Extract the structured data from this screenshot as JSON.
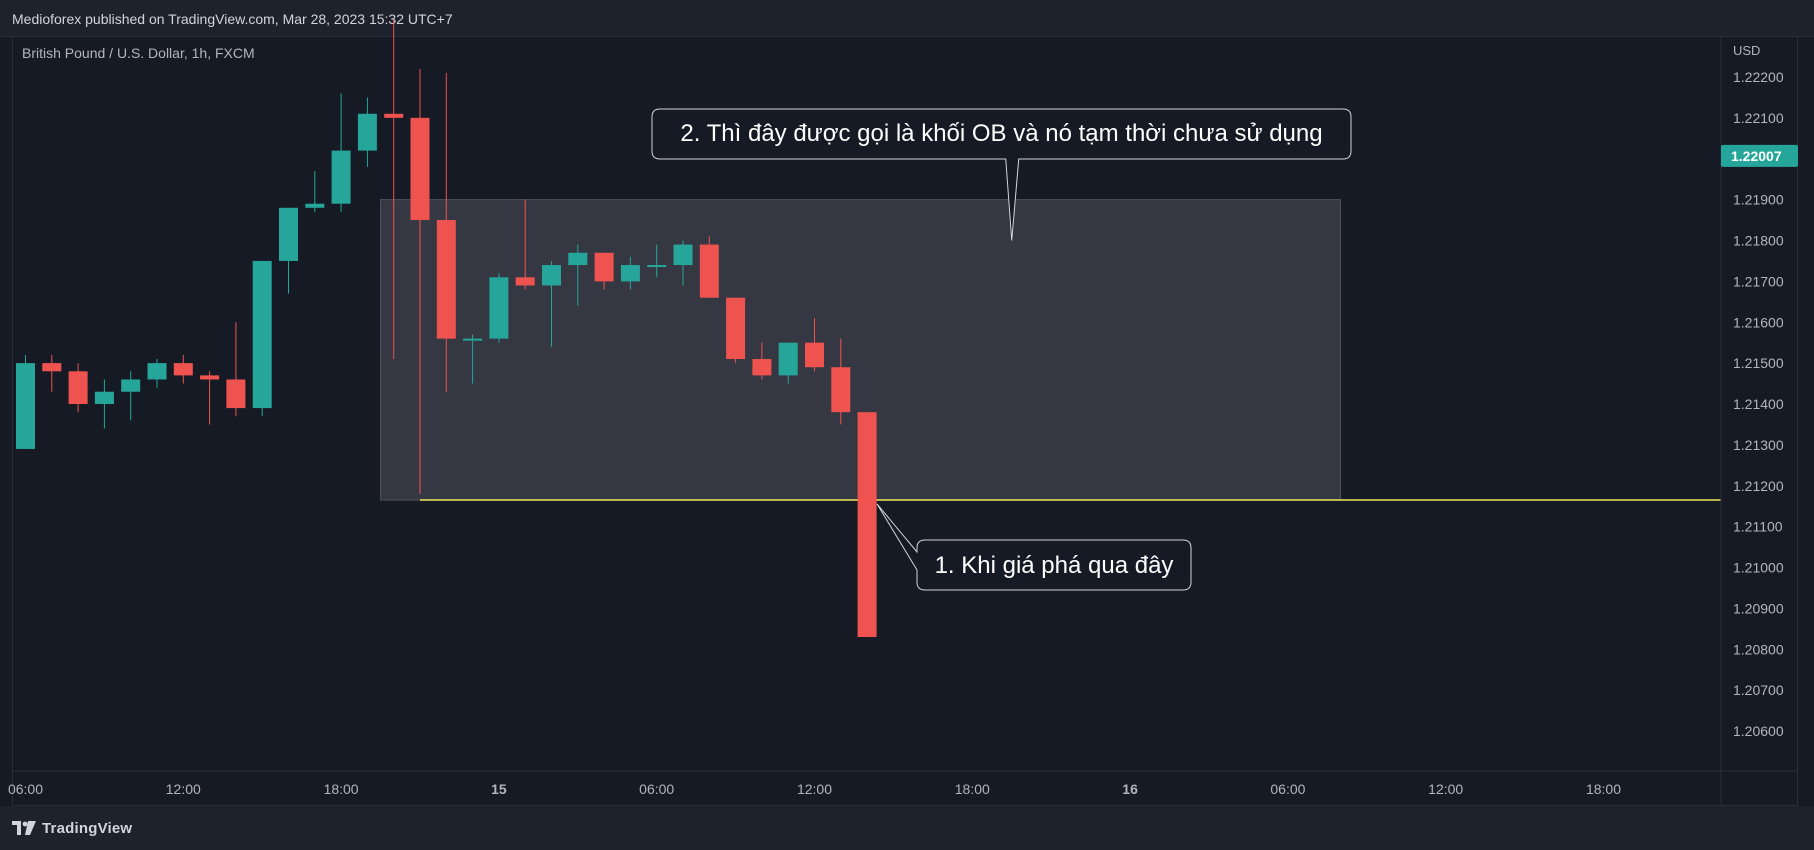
{
  "header": {
    "text": "Medioforex published on TradingView.com, Mar 28, 2023 15:32 UTC+7"
  },
  "footer": {
    "logo_text": "TradingView"
  },
  "colors": {
    "bull": "#26a69a",
    "bear": "#ef5350",
    "background": "#161a25",
    "ob_box": "#3b3e48",
    "hline": "#f2e85c",
    "price_tag": "#26a69a"
  },
  "chart_data": {
    "type": "candlestick",
    "symbol_label": "British Pound / U.S. Dollar, 1h, FXCM",
    "currency": "USD",
    "ylim": [
      1.2055,
      1.2233
    ],
    "y_ticks": [
      "1.22200",
      "1.22100",
      "1.21900",
      "1.21800",
      "1.21700",
      "1.21600",
      "1.21500",
      "1.21400",
      "1.21300",
      "1.21200",
      "1.21100",
      "1.21000",
      "1.20900",
      "1.20800",
      "1.20700",
      "1.20600"
    ],
    "y_tick_values": [
      1.222,
      1.221,
      1.219,
      1.218,
      1.217,
      1.216,
      1.215,
      1.214,
      1.213,
      1.212,
      1.211,
      1.21,
      1.209,
      1.208,
      1.207,
      1.206
    ],
    "last_price": "1.22007",
    "last_price_value": 1.22007,
    "x_ticks": [
      {
        "label": "06:00",
        "bar": 0,
        "bold": false
      },
      {
        "label": "12:00",
        "bar": 6,
        "bold": false
      },
      {
        "label": "18:00",
        "bar": 12,
        "bold": false
      },
      {
        "label": "15",
        "bar": 18,
        "bold": true
      },
      {
        "label": "06:00",
        "bar": 24,
        "bold": false
      },
      {
        "label": "12:00",
        "bar": 30,
        "bold": false
      },
      {
        "label": "18:00",
        "bar": 36,
        "bold": false
      },
      {
        "label": "16",
        "bar": 42,
        "bold": true
      },
      {
        "label": "06:00",
        "bar": 48,
        "bold": false
      },
      {
        "label": "12:00",
        "bar": 54,
        "bold": false
      },
      {
        "label": "18:00",
        "bar": 60,
        "bold": false
      }
    ],
    "candles": [
      {
        "o": 1.2129,
        "h": 1.2152,
        "l": 1.2129,
        "c": 1.215
      },
      {
        "o": 1.215,
        "h": 1.2152,
        "l": 1.2143,
        "c": 1.2148
      },
      {
        "o": 1.2148,
        "h": 1.215,
        "l": 1.2138,
        "c": 1.214
      },
      {
        "o": 1.214,
        "h": 1.2146,
        "l": 1.2134,
        "c": 1.2143
      },
      {
        "o": 1.2143,
        "h": 1.2148,
        "l": 1.2136,
        "c": 1.2146
      },
      {
        "o": 1.2146,
        "h": 1.2151,
        "l": 1.2144,
        "c": 1.215
      },
      {
        "o": 1.215,
        "h": 1.2152,
        "l": 1.2145,
        "c": 1.2147
      },
      {
        "o": 1.2147,
        "h": 1.2148,
        "l": 1.2135,
        "c": 1.2146
      },
      {
        "o": 1.2146,
        "h": 1.216,
        "l": 1.2137,
        "c": 1.2139
      },
      {
        "o": 1.2139,
        "h": 1.2174,
        "l": 1.2137,
        "c": 1.2175
      },
      {
        "o": 1.2175,
        "h": 1.2188,
        "l": 1.2167,
        "c": 1.2188
      },
      {
        "o": 1.2188,
        "h": 1.2197,
        "l": 1.2187,
        "c": 1.2189
      },
      {
        "o": 1.2189,
        "h": 1.2216,
        "l": 1.2187,
        "c": 1.2202
      },
      {
        "o": 1.2202,
        "h": 1.2215,
        "l": 1.2198,
        "c": 1.2211
      },
      {
        "o": 1.2211,
        "h": 1.2234,
        "l": 1.2151,
        "c": 1.221
      },
      {
        "o": 1.221,
        "h": 1.2222,
        "l": 1.2118,
        "c": 1.2185
      },
      {
        "o": 1.2185,
        "h": 1.2221,
        "l": 1.2143,
        "c": 1.2156
      },
      {
        "o": 1.2156,
        "h": 1.2157,
        "l": 1.2145,
        "c": 1.2156
      },
      {
        "o": 1.2156,
        "h": 1.2172,
        "l": 1.2155,
        "c": 1.2171
      },
      {
        "o": 1.2171,
        "h": 1.219,
        "l": 1.2168,
        "c": 1.2169
      },
      {
        "o": 1.2169,
        "h": 1.2175,
        "l": 1.2154,
        "c": 1.2174
      },
      {
        "o": 1.2174,
        "h": 1.2179,
        "l": 1.2164,
        "c": 1.2177
      },
      {
        "o": 1.2177,
        "h": 1.2177,
        "l": 1.2168,
        "c": 1.217
      },
      {
        "o": 1.217,
        "h": 1.2176,
        "l": 1.2168,
        "c": 1.2174
      },
      {
        "o": 1.2174,
        "h": 1.2179,
        "l": 1.2171,
        "c": 1.2174
      },
      {
        "o": 1.2174,
        "h": 1.218,
        "l": 1.2169,
        "c": 1.2179
      },
      {
        "o": 1.2179,
        "h": 1.2181,
        "l": 1.2166,
        "c": 1.2166
      },
      {
        "o": 1.2166,
        "h": 1.2166,
        "l": 1.215,
        "c": 1.2151
      },
      {
        "o": 1.2151,
        "h": 1.2155,
        "l": 1.2146,
        "c": 1.2147
      },
      {
        "o": 1.2147,
        "h": 1.2155,
        "l": 1.2145,
        "c": 1.2155
      },
      {
        "o": 1.2155,
        "h": 1.2161,
        "l": 1.2148,
        "c": 1.2149
      },
      {
        "o": 1.2149,
        "h": 1.2156,
        "l": 1.2135,
        "c": 1.2138
      },
      {
        "o": 1.2138,
        "h": 1.2138,
        "l": 1.2083,
        "c": 1.2083
      }
    ],
    "order_block": {
      "from_bar": 14,
      "to_bar": 50,
      "top": 1.219,
      "bottom": 1.21165
    },
    "horizontal_line": {
      "from_bar": 15,
      "price": 1.21165
    },
    "annotations": [
      {
        "text": "2. Thì đây được gọi là khối OB và nó tạm thời chưa sử dụng",
        "pointer_bar": 37.5,
        "pointer_price": 1.218
      },
      {
        "text": "1. Khi giá phá qua đây",
        "pointer_bar": 32,
        "pointer_price": 1.21165
      }
    ]
  }
}
